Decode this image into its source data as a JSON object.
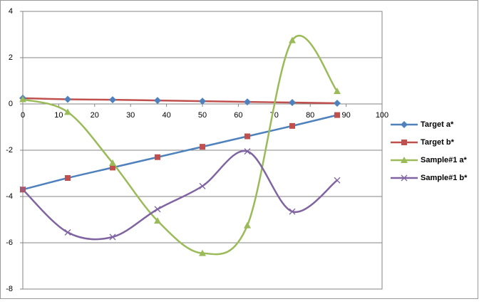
{
  "chart_data": {
    "type": "scatter",
    "smooth": true,
    "xlim": [
      0,
      100
    ],
    "xticks": [
      0,
      10,
      20,
      30,
      40,
      50,
      60,
      70,
      80,
      90,
      100
    ],
    "ylim": [
      -8,
      4
    ],
    "yticks": [
      -8,
      -6,
      -4,
      -2,
      0,
      2,
      4
    ],
    "grid": true,
    "legend": "right",
    "series": [
      {
        "name": "Target a*",
        "color": "#4f81bd",
        "line_color": "#c0504d",
        "marker": "diamond",
        "x": [
          0,
          12.5,
          25,
          37.5,
          50,
          62.5,
          75,
          87.5
        ],
        "values": [
          0.25,
          0.2,
          0.18,
          0.15,
          0.12,
          0.09,
          0.06,
          0.03
        ]
      },
      {
        "name": "Target b*",
        "color": "#c0504d",
        "line_color": "#4f81bd",
        "marker": "square",
        "x": [
          0,
          12.5,
          25,
          37.5,
          50,
          62.5,
          75,
          87.5
        ],
        "values": [
          -3.7,
          -3.2,
          -2.75,
          -2.3,
          -1.85,
          -1.4,
          -0.95,
          -0.48
        ]
      },
      {
        "name": "Sample#1 a*",
        "color": "#9bbb59",
        "line_color": "#9bbb59",
        "marker": "triangle",
        "x": [
          0,
          12.5,
          25,
          37.5,
          50,
          62.5,
          75,
          87.5
        ],
        "values": [
          0.2,
          -0.35,
          -2.55,
          -5.05,
          -6.45,
          -5.25,
          2.75,
          0.55
        ]
      },
      {
        "name": "Sample#1 b*",
        "color": "#8064a2",
        "line_color": "#8064a2",
        "marker": "x",
        "x": [
          0,
          12.5,
          25,
          37.5,
          50,
          62.5,
          75,
          87.5
        ],
        "values": [
          -3.7,
          -5.55,
          -5.75,
          -4.55,
          -3.55,
          -2.05,
          -4.65,
          -3.3
        ]
      }
    ]
  }
}
